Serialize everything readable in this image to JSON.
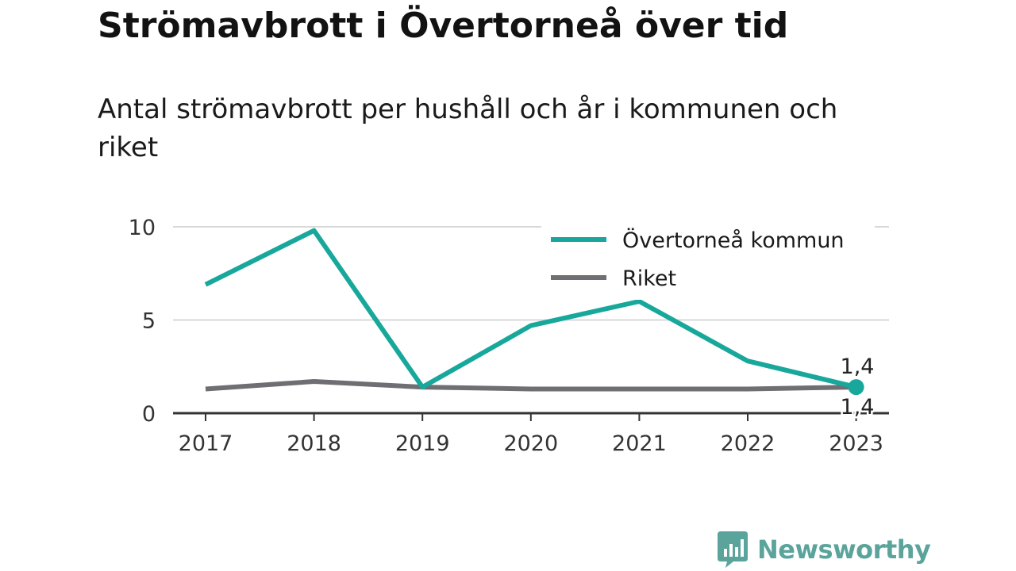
{
  "title": "Strömavbrott i Övertorneå över tid",
  "subtitle": "Antal strömavbrott per hushåll och år i kommunen och riket",
  "logo_text": "Newsworthy",
  "colors": {
    "kommun": "#18a89b",
    "riket": "#6e6e73",
    "grid": "#d9d9d9",
    "axis": "#333333"
  },
  "chart_data": {
    "type": "line",
    "x": [
      "2017",
      "2018",
      "2019",
      "2020",
      "2021",
      "2022",
      "2023"
    ],
    "series": [
      {
        "name": "Övertorneå kommun",
        "values": [
          6.9,
          9.8,
          1.4,
          4.7,
          6.0,
          2.8,
          1.4
        ]
      },
      {
        "name": "Riket",
        "values": [
          1.3,
          1.7,
          1.4,
          1.3,
          1.3,
          1.3,
          1.4
        ]
      }
    ],
    "ylim": [
      0,
      10
    ],
    "yticks": [
      "0",
      "5",
      "10"
    ],
    "end_labels": [
      "1,4",
      "1,4"
    ],
    "legend": "top-right",
    "grid": true,
    "xlabel": "",
    "ylabel": ""
  }
}
